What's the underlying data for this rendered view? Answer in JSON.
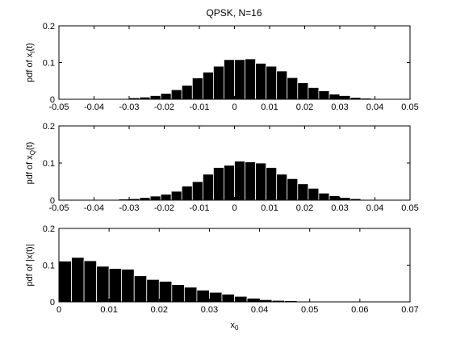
{
  "figure": {
    "title": "QPSK, N=16"
  },
  "chart_data": [
    {
      "type": "bar",
      "title": "QPSK, N=16",
      "xlabel": "",
      "ylabel": "pdf of x_I(t)",
      "ylabel_main": "pdf of x",
      "ylabel_sub": "I",
      "ylabel_tail": "(t)",
      "xlim": [
        -0.05,
        0.05
      ],
      "ylim": [
        0,
        0.2
      ],
      "xticks": [
        "-0.05",
        "-0.04",
        "-0.03",
        "-0.02",
        "-0.01",
        "0",
        "0.01",
        "0.02",
        "0.03",
        "0.04",
        "0.05"
      ],
      "yticks": [
        "0",
        "0.1",
        "0.2"
      ],
      "bin_width": 0.003,
      "x": [
        -0.0435,
        -0.0405,
        -0.0375,
        -0.0345,
        -0.0315,
        -0.0285,
        -0.0255,
        -0.0225,
        -0.0195,
        -0.0165,
        -0.0135,
        -0.0105,
        -0.0075,
        -0.0045,
        -0.0015,
        0.0015,
        0.0045,
        0.0075,
        0.0105,
        0.0135,
        0.0165,
        0.0195,
        0.0225,
        0.0255,
        0.0285,
        0.0315,
        0.0345,
        0.0375,
        0.0405,
        0.0435
      ],
      "values": [
        0.001,
        0.001,
        0.001,
        0.002,
        0.002,
        0.004,
        0.006,
        0.01,
        0.016,
        0.026,
        0.038,
        0.058,
        0.074,
        0.09,
        0.108,
        0.108,
        0.11,
        0.098,
        0.09,
        0.077,
        0.059,
        0.045,
        0.032,
        0.023,
        0.014,
        0.01,
        0.005,
        0.003,
        0.002,
        0.001
      ]
    },
    {
      "type": "bar",
      "xlabel": "",
      "ylabel": "pdf of x_Q(t)",
      "ylabel_main": "pdf of x",
      "ylabel_sub": "Q",
      "ylabel_tail": "(t)",
      "xlim": [
        -0.05,
        0.05
      ],
      "ylim": [
        0,
        0.2
      ],
      "xticks": [
        "-0.05",
        "-0.04",
        "-0.03",
        "-0.02",
        "-0.01",
        "0",
        "0.01",
        "0.02",
        "0.03",
        "0.04",
        "0.05"
      ],
      "yticks": [
        "0",
        "0.1",
        "0.2"
      ],
      "bin_width": 0.003,
      "x": [
        -0.0435,
        -0.0405,
        -0.0375,
        -0.0345,
        -0.0315,
        -0.0285,
        -0.0255,
        -0.0225,
        -0.0195,
        -0.0165,
        -0.0135,
        -0.0105,
        -0.0075,
        -0.0045,
        -0.0015,
        0.0015,
        0.0045,
        0.0075,
        0.0105,
        0.0135,
        0.0165,
        0.0195,
        0.0225,
        0.0255,
        0.0285,
        0.0315,
        0.0345,
        0.0375,
        0.0405,
        0.0435
      ],
      "values": [
        0.001,
        0.001,
        0.001,
        0.002,
        0.003,
        0.004,
        0.007,
        0.011,
        0.016,
        0.024,
        0.038,
        0.05,
        0.07,
        0.088,
        0.094,
        0.105,
        0.103,
        0.1,
        0.088,
        0.07,
        0.058,
        0.044,
        0.032,
        0.019,
        0.012,
        0.007,
        0.004,
        0.002,
        0.001,
        0.001
      ]
    },
    {
      "type": "bar",
      "xlabel": "x_0",
      "xlabel_main": "x",
      "xlabel_sub": "0",
      "ylabel": "pdf of |x(t)|",
      "ylabel_main": "pdf of |x(t)|",
      "ylabel_sub": "",
      "ylabel_tail": "",
      "xlim": [
        0,
        0.07
      ],
      "ylim": [
        0,
        0.2
      ],
      "xticks": [
        "0",
        "0.01",
        "0.02",
        "0.03",
        "0.04",
        "0.05",
        "0.06",
        "0.07"
      ],
      "yticks": [
        "0",
        "0.1",
        "0.2"
      ],
      "bin_width": 0.0025,
      "x": [
        0.00125,
        0.00375,
        0.00625,
        0.00875,
        0.01125,
        0.01375,
        0.01625,
        0.01875,
        0.02125,
        0.02375,
        0.02625,
        0.02875,
        0.03125,
        0.03375,
        0.03625,
        0.03875,
        0.04125,
        0.04375,
        0.04625,
        0.04875,
        0.05125,
        0.05375,
        0.05625,
        0.05875,
        0.06125,
        0.06375,
        0.06625
      ],
      "values": [
        0.111,
        0.121,
        0.112,
        0.097,
        0.091,
        0.089,
        0.071,
        0.061,
        0.056,
        0.047,
        0.04,
        0.032,
        0.026,
        0.021,
        0.015,
        0.01,
        0.006,
        0.004,
        0.003,
        0.002,
        0.001,
        0.001,
        0.001,
        0.001,
        0.001,
        0.001,
        0.001
      ]
    }
  ]
}
